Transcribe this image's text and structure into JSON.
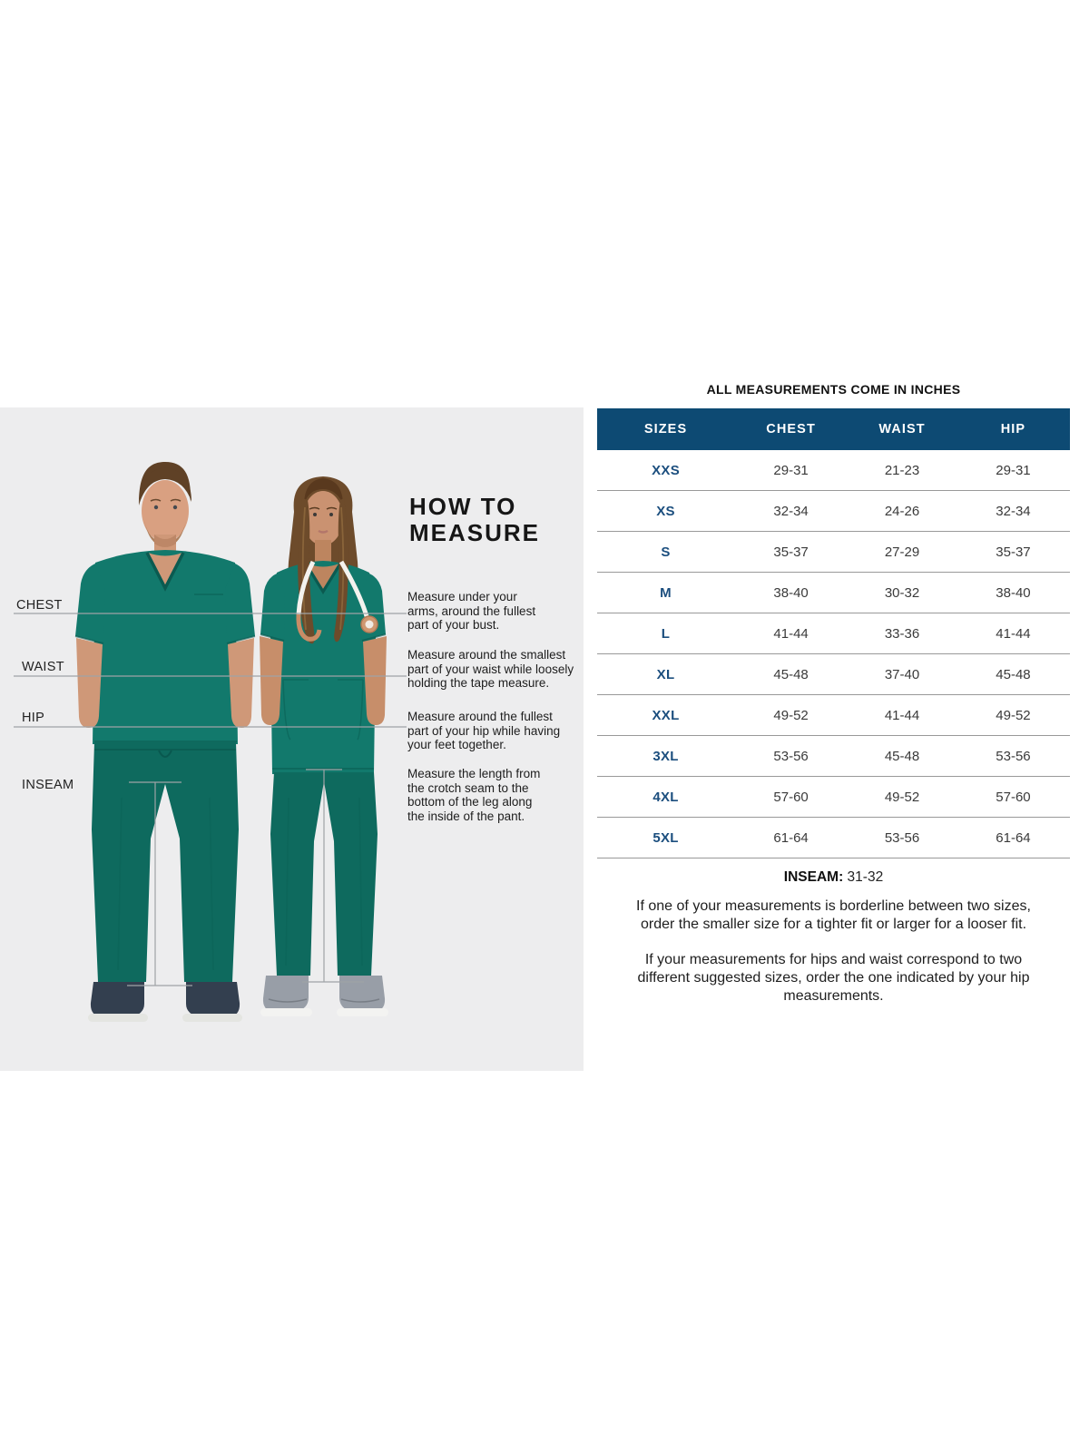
{
  "measure_panel": {
    "background": "#ededee",
    "labels": {
      "chest": "CHEST",
      "waist": "WAIST",
      "hip": "HIP",
      "inseam": "INSEAM"
    },
    "howto_title": "HOW TO\nMEASURE",
    "steps": [
      {
        "text": "Measure under your\narms, around the fullest\npart of your bust."
      },
      {
        "text": "Measure around the smallest\npart of your waist while loosely\nholding the tape measure."
      },
      {
        "text": "Measure around the fullest\npart of your hip while having\nyour feet together."
      },
      {
        "text": "Measure the length from\nthe crotch seam to the\nbottom of the leg along\nthe inside of the pant."
      }
    ],
    "photo_description": "man and woman wearing teal medical scrubs"
  },
  "size_chart": {
    "title": "ALL MEASUREMENTS COME IN INCHES",
    "columns": [
      "SIZES",
      "CHEST",
      "WAIST",
      "HIP"
    ],
    "rows": [
      {
        "size": "XXS",
        "chest": "29-31",
        "waist": "21-23",
        "hip": "29-31"
      },
      {
        "size": "XS",
        "chest": "32-34",
        "waist": "24-26",
        "hip": "32-34"
      },
      {
        "size": "S",
        "chest": "35-37",
        "waist": "27-29",
        "hip": "35-37"
      },
      {
        "size": "M",
        "chest": "38-40",
        "waist": "30-32",
        "hip": "38-40"
      },
      {
        "size": "L",
        "chest": "41-44",
        "waist": "33-36",
        "hip": "41-44"
      },
      {
        "size": "XL",
        "chest": "45-48",
        "waist": "37-40",
        "hip": "45-48"
      },
      {
        "size": "XXL",
        "chest": "49-52",
        "waist": "41-44",
        "hip": "49-52"
      },
      {
        "size": "3XL",
        "chest": "53-56",
        "waist": "45-48",
        "hip": "53-56"
      },
      {
        "size": "4XL",
        "chest": "57-60",
        "waist": "49-52",
        "hip": "57-60"
      },
      {
        "size": "5XL",
        "chest": "61-64",
        "waist": "53-56",
        "hip": "61-64"
      }
    ],
    "inseam_label": "INSEAM:",
    "inseam_value": "31-32",
    "notes": [
      "If one of your measurements is borderline between two sizes,\norder the smaller size for a tighter fit or larger for a looser fit.",
      "If your measurements for hips and waist correspond to two\ndifferent suggested sizes, order the one indicated by your hip\nmeasurements."
    ]
  },
  "colors": {
    "header_navy": "#0d4a73",
    "size_text_navy": "#1b4e7e",
    "scrub_teal": "#12796c",
    "scrub_teal_dark": "#0e6a5e",
    "panel_gray": "#ededee",
    "row_line_gray": "#999999",
    "measure_line_gray": "#9fa3a6"
  }
}
